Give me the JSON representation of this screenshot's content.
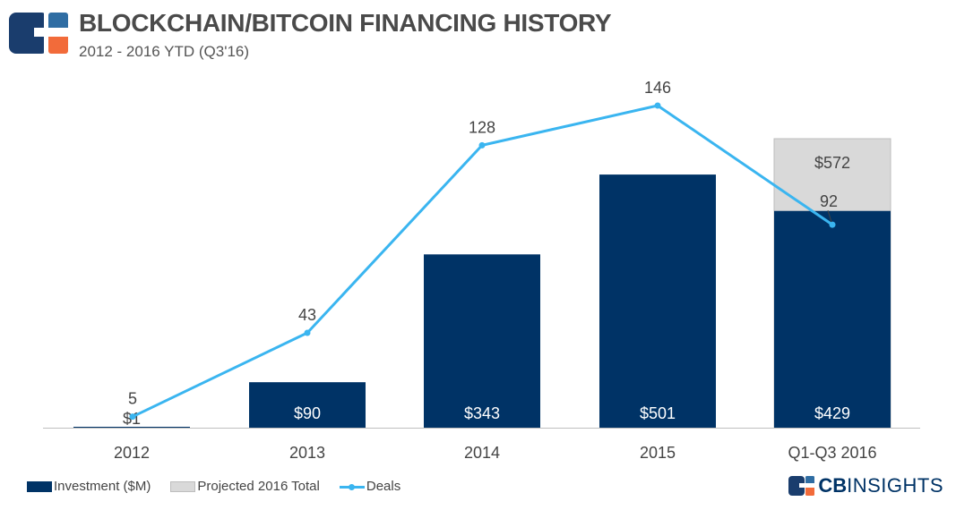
{
  "header": {
    "title": "BLOCKCHAIN/BITCOIN FINANCING HISTORY",
    "subtitle": "2012 - 2016 YTD (Q3'16)"
  },
  "chart_data": {
    "type": "bar",
    "categories": [
      "2012",
      "2013",
      "2014",
      "2015",
      "Q1-Q3 2016"
    ],
    "series": [
      {
        "name": "Investment ($M)",
        "kind": "bar",
        "values": [
          1,
          90,
          343,
          501,
          429
        ],
        "labels": [
          "$1",
          "$90",
          "$343",
          "$501",
          "$429"
        ]
      },
      {
        "name": "Projected 2016 Total",
        "kind": "bar-stack-total",
        "values": [
          null,
          null,
          null,
          null,
          572
        ],
        "labels": [
          "",
          "",
          "",
          "",
          "$572"
        ]
      },
      {
        "name": "Deals",
        "kind": "line",
        "values": [
          5,
          43,
          128,
          146,
          92
        ],
        "labels": [
          "5",
          "43",
          "128",
          "146",
          "92"
        ]
      }
    ],
    "ylim_investment": [
      0,
      572
    ],
    "ylim_deals": [
      0,
      155
    ],
    "colors": {
      "investment": "#003366",
      "projected": "#d9d9d9",
      "projected_border": "#bdbdbd",
      "deals": "#3ab5f0",
      "axis": "#bfbfbf"
    },
    "legend": [
      "Investment ($M)",
      "Projected 2016 Total",
      "Deals"
    ],
    "legend_position": "bottom-left"
  },
  "brand": {
    "cb": "CB",
    "rest": "INSIGHTS"
  },
  "colors": {
    "brand_navy": "#1a3d6d",
    "brand_blue": "#2f6da3",
    "brand_orange": "#f26b3a"
  }
}
